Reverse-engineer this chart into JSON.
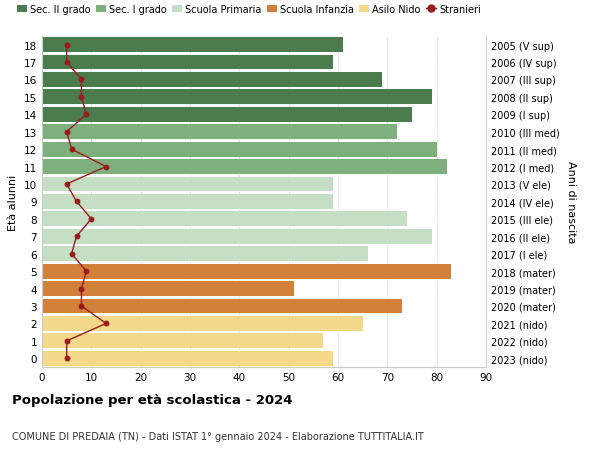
{
  "ages": [
    18,
    17,
    16,
    15,
    14,
    13,
    12,
    11,
    10,
    9,
    8,
    7,
    6,
    5,
    4,
    3,
    2,
    1,
    0
  ],
  "right_labels": [
    "2005 (V sup)",
    "2006 (IV sup)",
    "2007 (III sup)",
    "2008 (II sup)",
    "2009 (I sup)",
    "2010 (III med)",
    "2011 (II med)",
    "2012 (I med)",
    "2013 (V ele)",
    "2014 (IV ele)",
    "2015 (III ele)",
    "2016 (II ele)",
    "2017 (I ele)",
    "2018 (mater)",
    "2019 (mater)",
    "2020 (mater)",
    "2021 (nido)",
    "2022 (nido)",
    "2023 (nido)"
  ],
  "bar_values": [
    61,
    59,
    69,
    79,
    75,
    72,
    80,
    82,
    59,
    59,
    74,
    79,
    66,
    83,
    51,
    73,
    65,
    57,
    59
  ],
  "stranieri": [
    5,
    5,
    8,
    8,
    9,
    5,
    6,
    13,
    5,
    7,
    10,
    7,
    6,
    9,
    8,
    8,
    13,
    5,
    5
  ],
  "bar_colors": [
    "#4a7c4e",
    "#4a7c4e",
    "#4a7c4e",
    "#4a7c4e",
    "#4a7c4e",
    "#7db07d",
    "#7db07d",
    "#7db07d",
    "#c5dfc5",
    "#c5dfc5",
    "#c5dfc5",
    "#c5dfc5",
    "#c5dfc5",
    "#d2813a",
    "#d2813a",
    "#d2813a",
    "#f5d98b",
    "#f5d98b",
    "#f5d98b"
  ],
  "legend_labels": [
    "Sec. II grado",
    "Sec. I grado",
    "Scuola Primaria",
    "Scuola Infanzia",
    "Asilo Nido",
    "Stranieri"
  ],
  "legend_colors": [
    "#4a7c4e",
    "#7db07d",
    "#c5dfc5",
    "#d2813a",
    "#f5d98b",
    "#9b1c1c"
  ],
  "title1": "Popolazione per età scolastica - 2024",
  "title2": "COMUNE DI PREDAIA (TN) - Dati ISTAT 1° gennaio 2024 - Elaborazione TUTTITALIA.IT",
  "ylabel_left": "Età alunni",
  "ylabel_right": "Anni di nascita",
  "xlim": [
    0,
    90
  ],
  "xticks": [
    0,
    10,
    20,
    30,
    40,
    50,
    60,
    70,
    80,
    90
  ],
  "bg_color": "#ffffff",
  "bar_height": 0.85,
  "grid_color": "#dddddd",
  "stranieri_color": "#9b1c1c"
}
